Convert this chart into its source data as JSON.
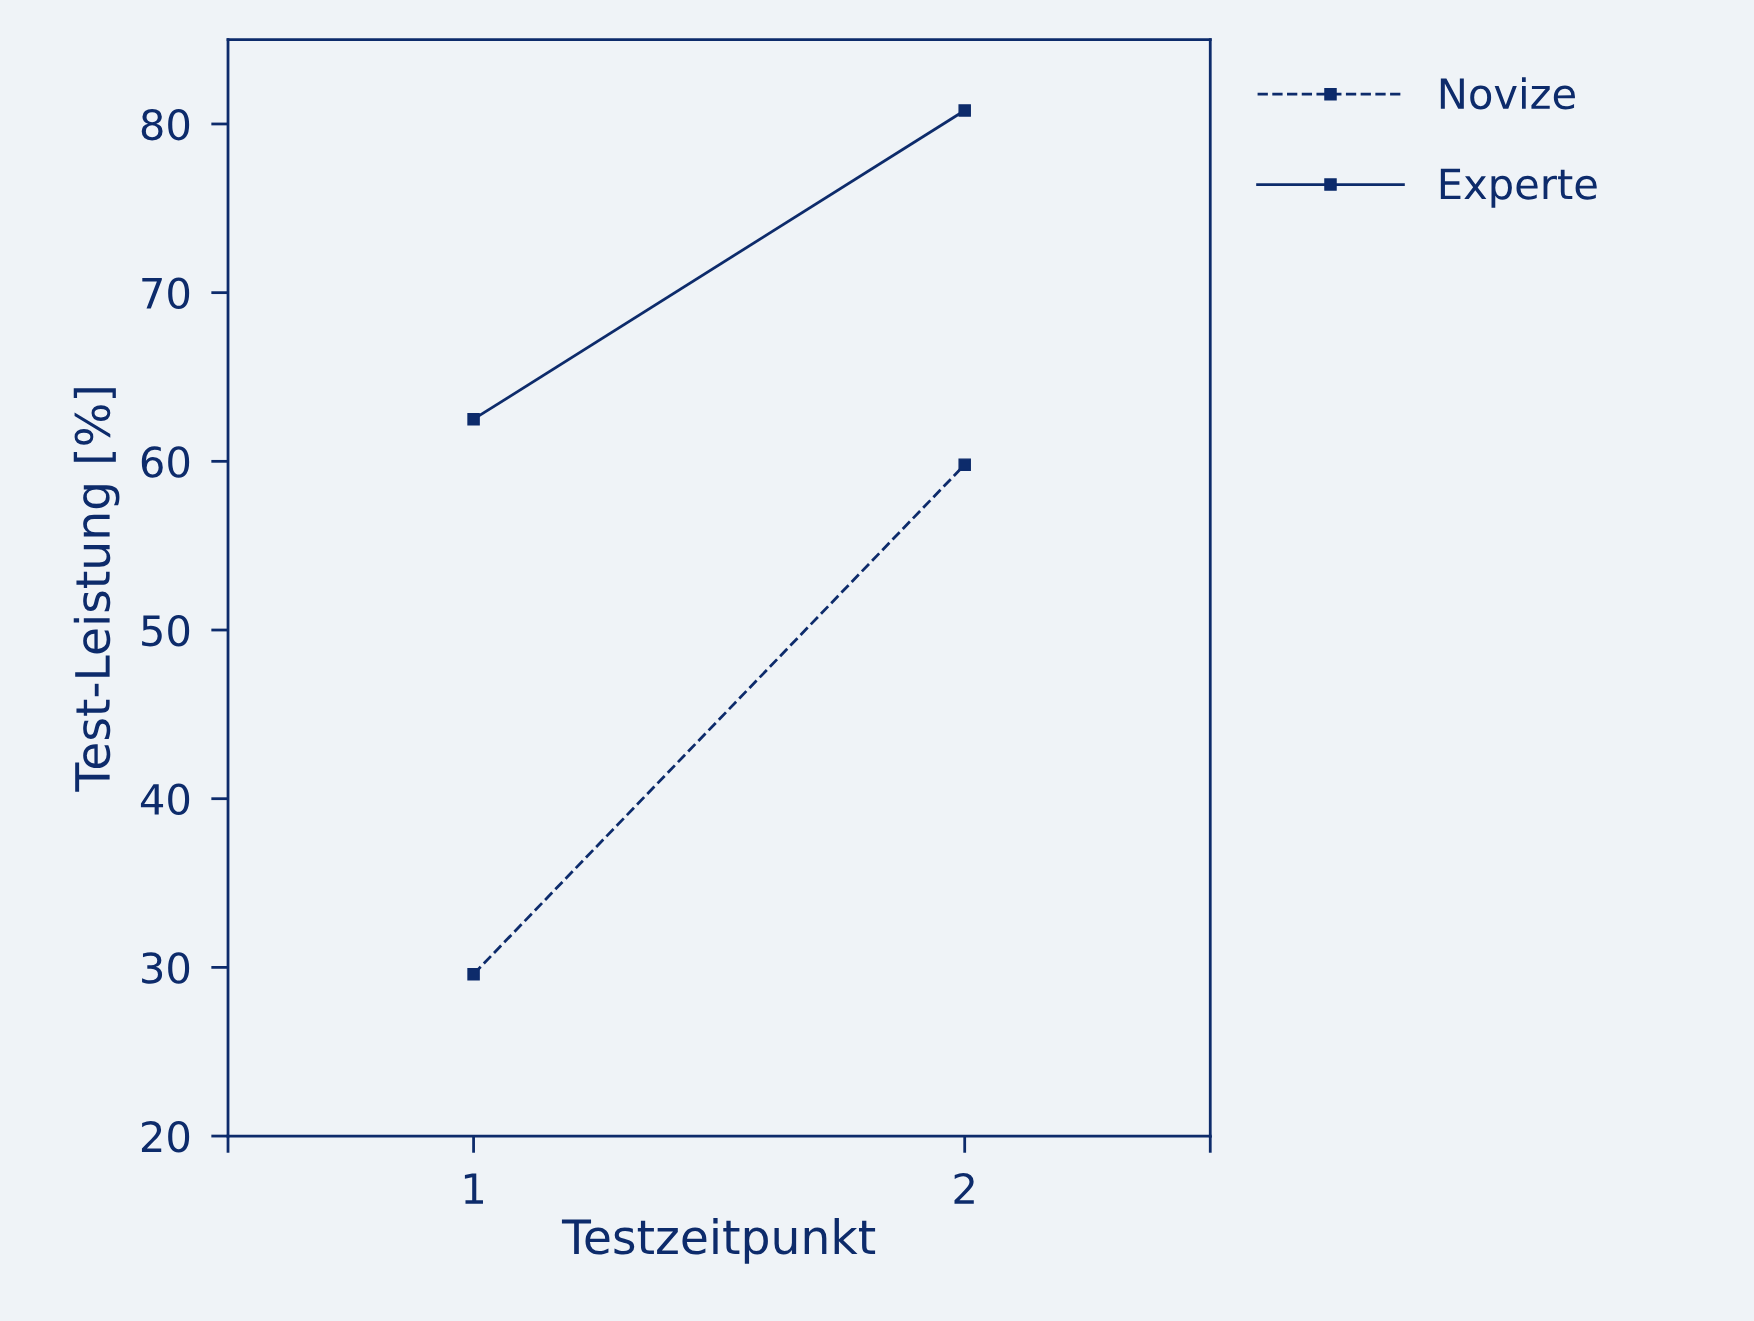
{
  "chart_data": {
    "type": "line",
    "xlabel": "Testzeitpunkt",
    "ylabel": "Test-Leistung [%]",
    "x": [
      1,
      2
    ],
    "series": [
      {
        "name": "Novize",
        "color": "#0d2b6b",
        "values": [
          29.6,
          59.8
        ],
        "line_style": "dashed"
      },
      {
        "name": "Experte",
        "color": "#0d2b6b",
        "values": [
          62.5,
          80.8
        ],
        "line_style": "solid"
      }
    ],
    "xlim": [
      0.5,
      2.5
    ],
    "xticks": [
      {
        "value": 0.5,
        "label": null
      },
      1,
      2,
      {
        "value": 2.5,
        "label": null
      }
    ],
    "ylim": [
      20,
      85
    ],
    "yticks": [
      20,
      30,
      40,
      50,
      60,
      70,
      80
    ],
    "marker": "square",
    "grid": false,
    "legend": "top right"
  }
}
